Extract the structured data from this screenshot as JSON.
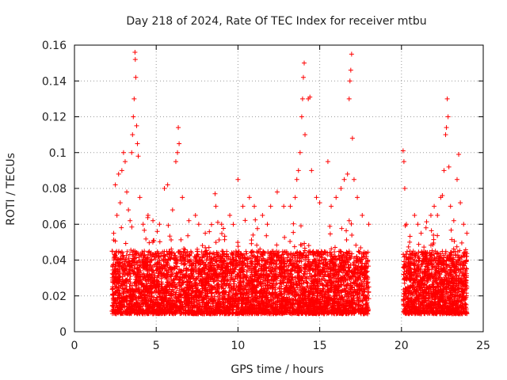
{
  "chart_data": {
    "type": "scatter",
    "title": "Day 218 of 2024, Rate Of TEC Index for receiver mtbu",
    "xlabel": "GPS time / hours",
    "ylabel": "ROTI / TECUs",
    "xlim": [
      0,
      25
    ],
    "ylim": [
      0,
      0.16
    ],
    "xticks": [
      0,
      5,
      10,
      15,
      20,
      25
    ],
    "yticks": [
      0,
      0.02,
      0.04,
      0.06,
      0.08,
      0.1,
      0.12,
      0.14,
      0.16
    ],
    "xtick_labels": [
      "0",
      "5",
      "10",
      "15",
      "20",
      "25"
    ],
    "ytick_labels": [
      "0",
      "0.02",
      "0.04",
      "0.06",
      "0.08",
      "0.1",
      "0.12",
      "0.14",
      "0.16"
    ],
    "grid": true,
    "marker": "+",
    "color": "#ff0000",
    "series": [
      {
        "points": [
          [
            2.3,
            0.045
          ],
          [
            2.4,
            0.055
          ],
          [
            2.5,
            0.082
          ],
          [
            2.6,
            0.065
          ],
          [
            2.7,
            0.088
          ],
          [
            2.8,
            0.072
          ],
          [
            2.9,
            0.09
          ],
          [
            3.0,
            0.1
          ],
          [
            3.1,
            0.095
          ],
          [
            3.2,
            0.078
          ],
          [
            3.3,
            0.068
          ],
          [
            3.4,
            0.062
          ],
          [
            3.5,
            0.1
          ],
          [
            3.55,
            0.11
          ],
          [
            3.6,
            0.12
          ],
          [
            3.65,
            0.13
          ],
          [
            3.7,
            0.156
          ],
          [
            3.72,
            0.152
          ],
          [
            3.75,
            0.142
          ],
          [
            3.8,
            0.115
          ],
          [
            3.85,
            0.105
          ],
          [
            3.9,
            0.098
          ],
          [
            4.0,
            0.075
          ],
          [
            4.2,
            0.06
          ],
          [
            4.5,
            0.065
          ],
          [
            4.8,
            0.062
          ],
          [
            5.2,
            0.06
          ],
          [
            5.5,
            0.08
          ],
          [
            5.7,
            0.082
          ],
          [
            6.0,
            0.068
          ],
          [
            6.2,
            0.095
          ],
          [
            6.3,
            0.1
          ],
          [
            6.35,
            0.114
          ],
          [
            6.4,
            0.105
          ],
          [
            6.6,
            0.075
          ],
          [
            7.0,
            0.062
          ],
          [
            7.4,
            0.065
          ],
          [
            7.6,
            0.06
          ],
          [
            8.0,
            0.055
          ],
          [
            8.6,
            0.077
          ],
          [
            8.65,
            0.07
          ],
          [
            9.0,
            0.06
          ],
          [
            9.5,
            0.065
          ],
          [
            10.0,
            0.085
          ],
          [
            10.3,
            0.07
          ],
          [
            10.7,
            0.075
          ],
          [
            11.0,
            0.07
          ],
          [
            11.5,
            0.065
          ],
          [
            11.8,
            0.06
          ],
          [
            12.0,
            0.07
          ],
          [
            12.4,
            0.078
          ],
          [
            12.8,
            0.07
          ],
          [
            13.2,
            0.07
          ],
          [
            13.5,
            0.075
          ],
          [
            13.6,
            0.085
          ],
          [
            13.7,
            0.09
          ],
          [
            13.8,
            0.1
          ],
          [
            13.9,
            0.12
          ],
          [
            13.95,
            0.13
          ],
          [
            14.0,
            0.142
          ],
          [
            14.05,
            0.15
          ],
          [
            14.1,
            0.11
          ],
          [
            14.3,
            0.13
          ],
          [
            14.4,
            0.131
          ],
          [
            14.5,
            0.09
          ],
          [
            14.8,
            0.075
          ],
          [
            15.0,
            0.072
          ],
          [
            15.5,
            0.095
          ],
          [
            15.7,
            0.07
          ],
          [
            16.0,
            0.075
          ],
          [
            16.3,
            0.08
          ],
          [
            16.5,
            0.085
          ],
          [
            16.7,
            0.088
          ],
          [
            16.8,
            0.13
          ],
          [
            16.85,
            0.14
          ],
          [
            16.9,
            0.146
          ],
          [
            16.95,
            0.155
          ],
          [
            17.0,
            0.108
          ],
          [
            17.1,
            0.085
          ],
          [
            17.3,
            0.075
          ],
          [
            17.6,
            0.065
          ],
          [
            18.0,
            0.06
          ],
          [
            2.4,
            0.03
          ],
          [
            2.7,
            0.025
          ],
          [
            3.0,
            0.035
          ],
          [
            3.3,
            0.028
          ],
          [
            3.6,
            0.04
          ],
          [
            3.9,
            0.03
          ],
          [
            4.2,
            0.025
          ],
          [
            4.5,
            0.035
          ],
          [
            4.8,
            0.03
          ],
          [
            5.1,
            0.028
          ],
          [
            5.4,
            0.035
          ],
          [
            5.7,
            0.032
          ],
          [
            6.0,
            0.026
          ],
          [
            6.3,
            0.04
          ],
          [
            6.6,
            0.03
          ],
          [
            6.9,
            0.028
          ],
          [
            7.2,
            0.025
          ],
          [
            7.5,
            0.03
          ],
          [
            7.8,
            0.022
          ],
          [
            8.1,
            0.03
          ],
          [
            8.4,
            0.025
          ],
          [
            8.7,
            0.032
          ],
          [
            9.0,
            0.028
          ],
          [
            9.3,
            0.035
          ],
          [
            9.6,
            0.03
          ],
          [
            9.9,
            0.04
          ],
          [
            10.2,
            0.035
          ],
          [
            10.5,
            0.03
          ],
          [
            10.8,
            0.038
          ],
          [
            11.1,
            0.032
          ],
          [
            11.4,
            0.035
          ],
          [
            11.7,
            0.03
          ],
          [
            12.0,
            0.04
          ],
          [
            12.3,
            0.032
          ],
          [
            12.6,
            0.035
          ],
          [
            12.9,
            0.03
          ],
          [
            13.2,
            0.038
          ],
          [
            13.5,
            0.04
          ],
          [
            13.8,
            0.035
          ],
          [
            14.1,
            0.03
          ],
          [
            14.4,
            0.045
          ],
          [
            14.7,
            0.035
          ],
          [
            15.0,
            0.04
          ],
          [
            15.3,
            0.032
          ],
          [
            15.6,
            0.038
          ],
          [
            15.9,
            0.035
          ],
          [
            16.2,
            0.04
          ],
          [
            16.5,
            0.03
          ],
          [
            16.8,
            0.045
          ],
          [
            17.1,
            0.035
          ],
          [
            17.4,
            0.03
          ],
          [
            17.7,
            0.028
          ],
          [
            18.0,
            0.025
          ],
          [
            20.1,
            0.101
          ],
          [
            20.15,
            0.095
          ],
          [
            20.2,
            0.08
          ],
          [
            20.3,
            0.06
          ],
          [
            20.5,
            0.05
          ],
          [
            20.8,
            0.065
          ],
          [
            21.0,
            0.06
          ],
          [
            21.2,
            0.055
          ],
          [
            21.5,
            0.058
          ],
          [
            21.8,
            0.065
          ],
          [
            22.0,
            0.07
          ],
          [
            22.2,
            0.065
          ],
          [
            22.4,
            0.075
          ],
          [
            22.5,
            0.076
          ],
          [
            22.6,
            0.09
          ],
          [
            22.7,
            0.11
          ],
          [
            22.75,
            0.114
          ],
          [
            22.8,
            0.13
          ],
          [
            22.85,
            0.12
          ],
          [
            22.9,
            0.092
          ],
          [
            23.0,
            0.07
          ],
          [
            23.2,
            0.062
          ],
          [
            23.4,
            0.085
          ],
          [
            23.5,
            0.099
          ],
          [
            23.6,
            0.072
          ],
          [
            23.8,
            0.06
          ],
          [
            24.0,
            0.055
          ],
          [
            20.2,
            0.03
          ],
          [
            20.5,
            0.025
          ],
          [
            20.8,
            0.035
          ],
          [
            21.1,
            0.028
          ],
          [
            21.4,
            0.03
          ],
          [
            21.7,
            0.035
          ],
          [
            22.0,
            0.03
          ],
          [
            22.3,
            0.04
          ],
          [
            22.6,
            0.035
          ],
          [
            22.9,
            0.03
          ],
          [
            23.2,
            0.038
          ],
          [
            23.5,
            0.03
          ],
          [
            23.8,
            0.035
          ],
          [
            24.0,
            0.025
          ]
        ]
      }
    ],
    "bands": [
      {
        "x_start": 2.3,
        "x_end": 18.0,
        "y_min": 0.01,
        "y_base_top": 0.045,
        "density": 5200
      },
      {
        "x_start": 20.1,
        "x_end": 24.0,
        "y_min": 0.01,
        "y_base_top": 0.045,
        "density": 1400
      }
    ]
  }
}
